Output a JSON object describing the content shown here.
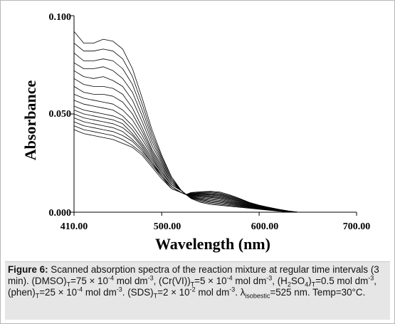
{
  "chart_data": {
    "type": "line",
    "xlabel": "Wavelength (nm)",
    "ylabel": "Absorbance",
    "xlim": [
      410,
      700
    ],
    "ylim": [
      0,
      0.1
    ],
    "x_ticks": [
      "410.00",
      "500.00",
      "600.00",
      "700.00"
    ],
    "y_ticks": [
      "0.000",
      "0.050",
      "0.100"
    ],
    "isosbestic_point": {
      "x": 525,
      "y": 0.009
    },
    "x": [
      410,
      420,
      430,
      440,
      450,
      460,
      470,
      480,
      490,
      500,
      510,
      520,
      525,
      530,
      540,
      550,
      560,
      570,
      580,
      590,
      600,
      610,
      620,
      630,
      640
    ],
    "series": [
      {
        "values": [
          0.092,
          0.086,
          0.086,
          0.088,
          0.087,
          0.083,
          0.073,
          0.058,
          0.042,
          0.029,
          0.018,
          0.011,
          0.009,
          0.007,
          0.005,
          0.004,
          0.0035,
          0.003,
          0.0025,
          0.002,
          0.0015,
          0.001,
          0.0005,
          0.0002,
          0.0
        ]
      },
      {
        "values": [
          0.086,
          0.082,
          0.082,
          0.083,
          0.082,
          0.078,
          0.069,
          0.055,
          0.04,
          0.028,
          0.018,
          0.011,
          0.009,
          0.0072,
          0.0055,
          0.0045,
          0.004,
          0.0034,
          0.0028,
          0.0022,
          0.0016,
          0.0011,
          0.0006,
          0.0002,
          0.0
        ]
      },
      {
        "values": [
          0.081,
          0.077,
          0.077,
          0.078,
          0.077,
          0.073,
          0.065,
          0.052,
          0.038,
          0.027,
          0.017,
          0.011,
          0.009,
          0.0074,
          0.006,
          0.005,
          0.0045,
          0.0038,
          0.0031,
          0.0024,
          0.0018,
          0.0012,
          0.0006,
          0.0002,
          0.0
        ]
      },
      {
        "values": [
          0.076,
          0.073,
          0.073,
          0.074,
          0.072,
          0.068,
          0.061,
          0.049,
          0.036,
          0.026,
          0.017,
          0.011,
          0.009,
          0.0076,
          0.0064,
          0.0055,
          0.005,
          0.0042,
          0.0034,
          0.0026,
          0.0019,
          0.0013,
          0.0007,
          0.0002,
          0.0
        ]
      },
      {
        "values": [
          0.072,
          0.069,
          0.068,
          0.069,
          0.067,
          0.064,
          0.057,
          0.046,
          0.034,
          0.025,
          0.016,
          0.011,
          0.009,
          0.0078,
          0.0068,
          0.006,
          0.0055,
          0.0046,
          0.0037,
          0.0028,
          0.002,
          0.0014,
          0.0008,
          0.0003,
          0.0
        ]
      },
      {
        "values": [
          0.068,
          0.065,
          0.064,
          0.064,
          0.063,
          0.06,
          0.053,
          0.043,
          0.032,
          0.024,
          0.016,
          0.011,
          0.009,
          0.008,
          0.0072,
          0.0065,
          0.006,
          0.005,
          0.004,
          0.003,
          0.0022,
          0.0015,
          0.0008,
          0.0003,
          0.0
        ]
      },
      {
        "values": [
          0.064,
          0.061,
          0.06,
          0.06,
          0.059,
          0.056,
          0.05,
          0.041,
          0.031,
          0.023,
          0.015,
          0.011,
          0.009,
          0.0082,
          0.0076,
          0.007,
          0.0065,
          0.0054,
          0.0043,
          0.0032,
          0.0023,
          0.0016,
          0.0009,
          0.0003,
          0.0
        ]
      },
      {
        "values": [
          0.06,
          0.058,
          0.057,
          0.056,
          0.055,
          0.052,
          0.047,
          0.039,
          0.03,
          0.022,
          0.015,
          0.011,
          0.009,
          0.0084,
          0.008,
          0.0075,
          0.007,
          0.0058,
          0.0046,
          0.0034,
          0.0024,
          0.0017,
          0.001,
          0.0004,
          0.0
        ]
      },
      {
        "values": [
          0.057,
          0.055,
          0.054,
          0.053,
          0.052,
          0.049,
          0.044,
          0.037,
          0.029,
          0.021,
          0.014,
          0.011,
          0.009,
          0.0086,
          0.0083,
          0.0079,
          0.0074,
          0.0062,
          0.0049,
          0.0036,
          0.0026,
          0.0018,
          0.001,
          0.0004,
          0.0
        ]
      },
      {
        "values": [
          0.054,
          0.052,
          0.051,
          0.05,
          0.049,
          0.047,
          0.042,
          0.035,
          0.028,
          0.02,
          0.014,
          0.011,
          0.009,
          0.0088,
          0.0086,
          0.0083,
          0.0078,
          0.0066,
          0.0052,
          0.0038,
          0.0027,
          0.0019,
          0.0011,
          0.0004,
          0.0
        ]
      },
      {
        "values": [
          0.052,
          0.05,
          0.049,
          0.048,
          0.047,
          0.045,
          0.04,
          0.034,
          0.027,
          0.02,
          0.014,
          0.011,
          0.009,
          0.009,
          0.0089,
          0.0087,
          0.0082,
          0.007,
          0.0055,
          0.004,
          0.0028,
          0.002,
          0.0012,
          0.0005,
          0.0
        ]
      },
      {
        "values": [
          0.05,
          0.048,
          0.047,
          0.046,
          0.045,
          0.043,
          0.039,
          0.033,
          0.026,
          0.019,
          0.013,
          0.01,
          0.009,
          0.0092,
          0.0092,
          0.009,
          0.0086,
          0.0073,
          0.0058,
          0.0042,
          0.003,
          0.0021,
          0.0012,
          0.0005,
          0.0
        ]
      },
      {
        "values": [
          0.048,
          0.046,
          0.045,
          0.044,
          0.043,
          0.041,
          0.037,
          0.032,
          0.025,
          0.019,
          0.013,
          0.01,
          0.009,
          0.0094,
          0.0095,
          0.0094,
          0.009,
          0.0077,
          0.0061,
          0.0044,
          0.0031,
          0.0022,
          0.0013,
          0.0005,
          0.0
        ]
      },
      {
        "values": [
          0.046,
          0.044,
          0.043,
          0.042,
          0.041,
          0.039,
          0.036,
          0.031,
          0.025,
          0.018,
          0.013,
          0.01,
          0.009,
          0.0096,
          0.0098,
          0.0098,
          0.0094,
          0.008,
          0.0064,
          0.0046,
          0.0033,
          0.0023,
          0.0014,
          0.0006,
          0.0
        ]
      },
      {
        "values": [
          0.044,
          0.042,
          0.041,
          0.04,
          0.039,
          0.037,
          0.034,
          0.03,
          0.024,
          0.018,
          0.012,
          0.01,
          0.009,
          0.0098,
          0.0101,
          0.0102,
          0.0098,
          0.0084,
          0.0067,
          0.0048,
          0.0034,
          0.0024,
          0.0014,
          0.0006,
          0.0
        ]
      },
      {
        "values": [
          0.042,
          0.04,
          0.039,
          0.038,
          0.037,
          0.035,
          0.033,
          0.029,
          0.023,
          0.017,
          0.012,
          0.01,
          0.009,
          0.01,
          0.0104,
          0.0106,
          0.0102,
          0.0088,
          0.007,
          0.005,
          0.0036,
          0.0025,
          0.0015,
          0.0006,
          0.0
        ]
      }
    ]
  },
  "caption": {
    "label": "Figure 6:",
    "t1": " Scanned absorption spectra of the reaction mixture at regular time intervals (3 min). (DMSO)",
    "s1": "T",
    "t2": "=75 × 10",
    "p1": "-4",
    "t3": " mol dm",
    "p2": "-3",
    "t4": ", (Cr(VI))",
    "s2": "T",
    "t5": "=5 × 10",
    "p3": "-4",
    "t6": " mol dm",
    "p4": "-3",
    "t7": ", (H",
    "s3": "2",
    "t8": "SO",
    "s4": "4",
    "t9": ")",
    "s5": "T",
    "t10": "=0.5 mol dm",
    "p5": "-3",
    "t11": ", (phen)",
    "s6": "T",
    "t12": "=25 × 10",
    "p6": "-4",
    "t13": " mol dm",
    "p7": "-3",
    "t14": ". (SDS)",
    "s7": "T",
    "t15": "=2 × 10",
    "p8": "-2",
    "t16": " mol dm",
    "p9": "-3",
    "t17": ". λ",
    "s8": "isobestic",
    "t18": "=525 nm. Temp=30°C."
  }
}
